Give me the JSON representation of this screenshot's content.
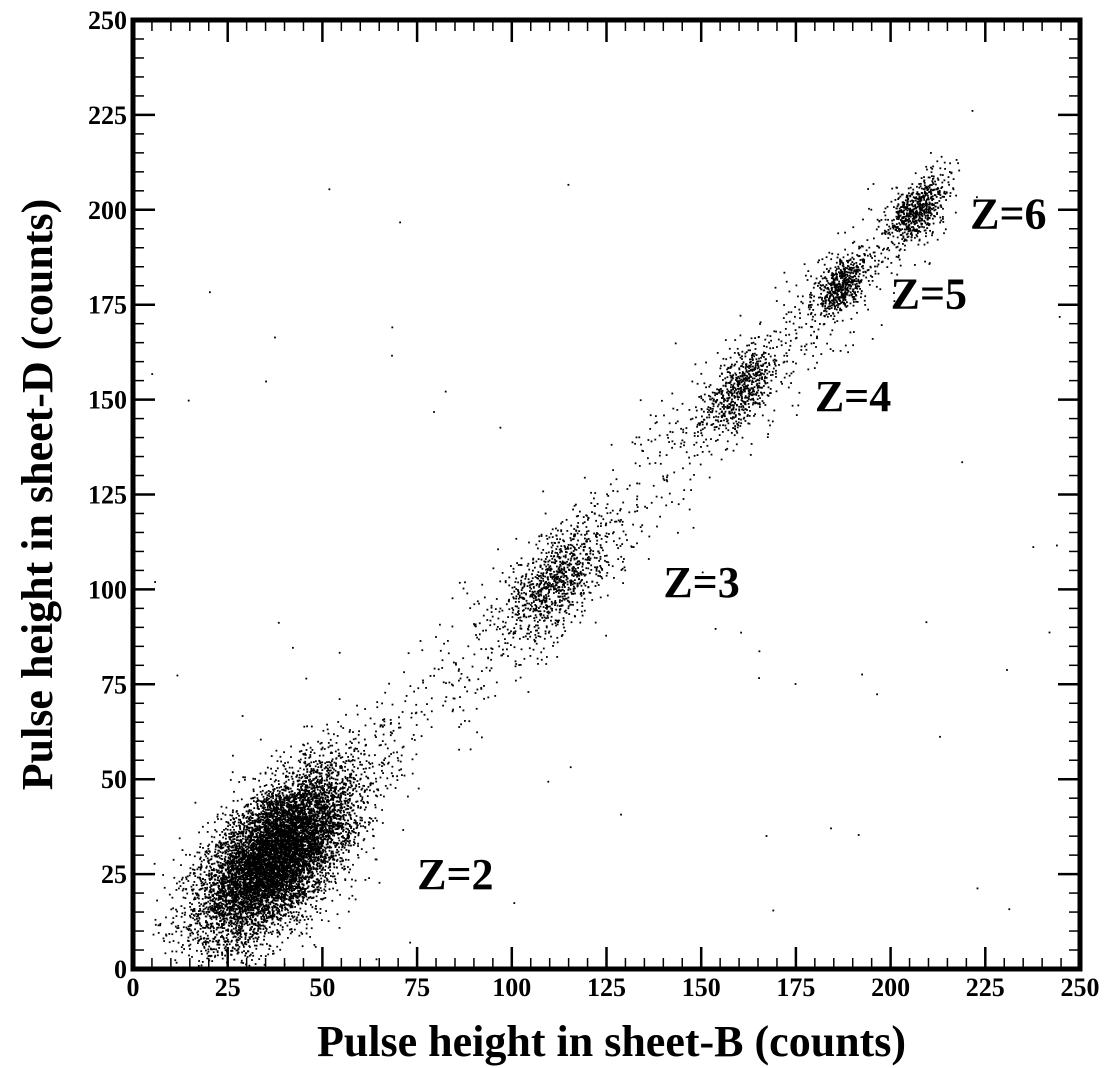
{
  "chart_data": {
    "type": "scatter",
    "xlabel": "Pulse height in sheet-B (counts)",
    "ylabel": "Pulse height in sheet-D (counts)",
    "xlim": [
      0,
      250
    ],
    "ylim": [
      0,
      250
    ],
    "x_ticks": [
      "0",
      "25",
      "50",
      "75",
      "100",
      "125",
      "150",
      "175",
      "200",
      "225",
      "250"
    ],
    "y_ticks": [
      "0",
      "25",
      "50",
      "75",
      "100",
      "125",
      "150",
      "175",
      "200",
      "225",
      "250"
    ],
    "grid": false,
    "marker_color": "#000000",
    "clusters": [
      {
        "label": "Z=2",
        "center": [
          38,
          30
        ],
        "spread": [
          10,
          11
        ],
        "approx_points": 9000
      },
      {
        "label": "Z=3",
        "center": [
          112,
          102
        ],
        "spread": [
          7,
          8
        ],
        "approx_points": 900
      },
      {
        "label": "Z=4",
        "center": [
          161,
          153
        ],
        "spread": [
          5,
          6
        ],
        "approx_points": 650
      },
      {
        "label": "Z=5",
        "center": [
          187,
          180
        ],
        "spread": [
          3.5,
          4
        ],
        "approx_points": 550
      },
      {
        "label": "Z=6",
        "center": [
          207,
          200
        ],
        "spread": [
          4,
          4.5
        ],
        "approx_points": 650
      }
    ],
    "annotations": [
      {
        "text": "Z=2",
        "x": 75,
        "y": 25
      },
      {
        "text": "Z=3",
        "x": 140,
        "y": 102
      },
      {
        "text": "Z=4",
        "x": 180,
        "y": 151
      },
      {
        "text": "Z=5",
        "x": 200,
        "y": 178
      },
      {
        "text": "Z=6",
        "x": 221,
        "y": 199
      }
    ]
  }
}
